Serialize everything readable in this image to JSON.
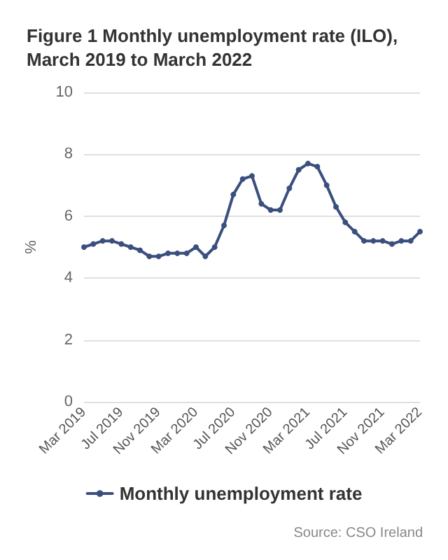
{
  "chart_data": {
    "type": "line",
    "title": "Figure 1 Monthly unemployment rate (ILO), March 2019 to March 2022",
    "ylabel": "%",
    "categories": [
      "Mar 2019",
      null,
      null,
      null,
      "Jul 2019",
      null,
      null,
      null,
      "Nov 2019",
      null,
      null,
      null,
      "Mar 2020",
      null,
      null,
      null,
      "Jul 2020",
      null,
      null,
      null,
      "Nov 2020",
      null,
      null,
      null,
      "Mar 2021",
      null,
      null,
      null,
      "Jul 2021",
      null,
      null,
      null,
      "Nov 2021",
      null,
      null,
      null,
      "Mar 2022"
    ],
    "series": [
      {
        "name": "Monthly unemployment rate",
        "color": "#3b4f7f",
        "values": [
          5.0,
          5.1,
          5.2,
          5.2,
          5.1,
          5.0,
          4.9,
          4.7,
          4.7,
          4.8,
          4.8,
          4.8,
          5.0,
          4.7,
          5.0,
          5.7,
          6.7,
          7.2,
          7.3,
          6.4,
          6.2,
          6.2,
          6.9,
          7.5,
          7.7,
          7.6,
          7.0,
          6.3,
          5.8,
          5.5,
          5.2,
          5.2,
          5.2,
          5.1,
          5.2,
          5.2,
          5.5
        ]
      }
    ],
    "ylim": [
      0,
      10
    ],
    "yticks": [
      0,
      2,
      4,
      6,
      8,
      10
    ],
    "grid": "y",
    "legend": "bottom",
    "marker": "circle",
    "line_style": "solid",
    "annotations": [
      "Source: CSO Ireland"
    ]
  }
}
